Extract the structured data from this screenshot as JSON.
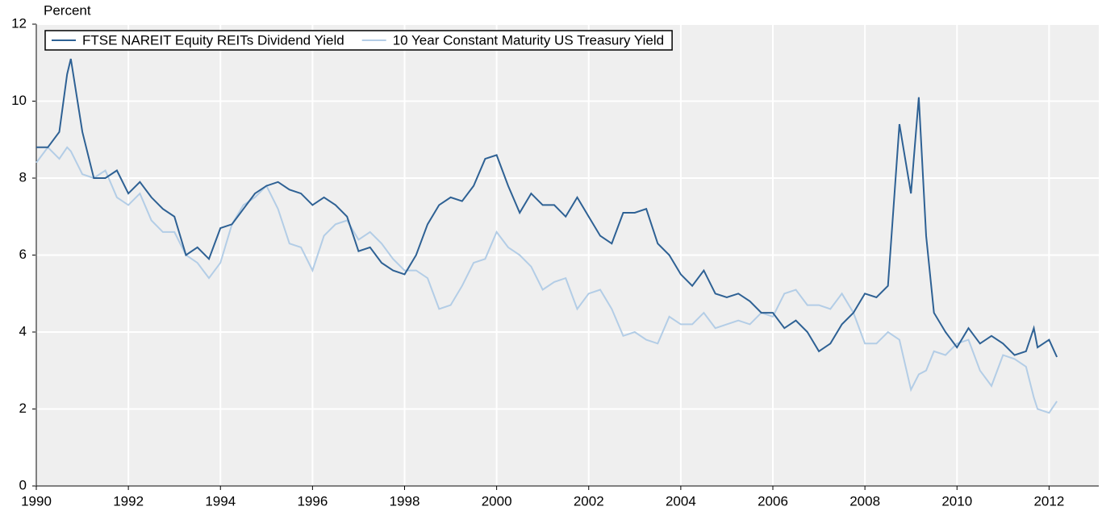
{
  "chart_data": {
    "type": "line",
    "y_label": "Percent",
    "x": [
      1990.0,
      1990.25,
      1990.5,
      1990.67,
      1990.75,
      1991.0,
      1991.25,
      1991.5,
      1991.75,
      1992.0,
      1992.25,
      1992.5,
      1992.75,
      1993.0,
      1993.25,
      1993.5,
      1993.75,
      1994.0,
      1994.25,
      1994.5,
      1994.75,
      1995.0,
      1995.25,
      1995.5,
      1995.75,
      1996.0,
      1996.25,
      1996.5,
      1996.75,
      1997.0,
      1997.25,
      1997.5,
      1997.75,
      1998.0,
      1998.25,
      1998.5,
      1998.75,
      1999.0,
      1999.25,
      1999.5,
      1999.75,
      2000.0,
      2000.25,
      2000.5,
      2000.75,
      2001.0,
      2001.25,
      2001.5,
      2001.75,
      2002.0,
      2002.25,
      2002.5,
      2002.75,
      2003.0,
      2003.25,
      2003.5,
      2003.75,
      2004.0,
      2004.25,
      2004.5,
      2004.75,
      2005.0,
      2005.25,
      2005.5,
      2005.75,
      2006.0,
      2006.25,
      2006.5,
      2006.75,
      2007.0,
      2007.25,
      2007.5,
      2007.75,
      2008.0,
      2008.25,
      2008.5,
      2008.75,
      2009.0,
      2009.17,
      2009.33,
      2009.5,
      2009.75,
      2010.0,
      2010.25,
      2010.5,
      2010.75,
      2011.0,
      2011.25,
      2011.5,
      2011.67,
      2011.75,
      2012.0,
      2012.17
    ],
    "series": [
      {
        "name": "FTSE NAREIT Equity REITs Dividend Yield",
        "color": "#2e6194",
        "values": [
          8.8,
          8.8,
          9.2,
          10.7,
          11.1,
          9.2,
          8.0,
          8.0,
          8.2,
          7.6,
          7.9,
          7.5,
          7.2,
          7.0,
          6.0,
          6.2,
          5.9,
          6.7,
          6.8,
          7.2,
          7.6,
          7.8,
          7.9,
          7.7,
          7.6,
          7.3,
          7.5,
          7.3,
          7.0,
          6.1,
          6.2,
          5.8,
          5.6,
          5.5,
          6.0,
          6.8,
          7.3,
          7.5,
          7.4,
          7.8,
          8.5,
          8.6,
          7.8,
          7.1,
          7.6,
          7.3,
          7.3,
          7.0,
          7.5,
          7.0,
          6.5,
          6.3,
          7.1,
          7.1,
          7.2,
          6.3,
          6.0,
          5.5,
          5.2,
          5.6,
          5.0,
          4.9,
          5.0,
          4.8,
          4.5,
          4.5,
          4.1,
          4.3,
          4.0,
          3.5,
          3.7,
          4.2,
          4.5,
          5.0,
          4.9,
          5.2,
          9.4,
          7.6,
          10.1,
          6.5,
          4.5,
          4.0,
          3.6,
          4.1,
          3.7,
          3.9,
          3.7,
          3.4,
          3.5,
          4.1,
          3.6,
          3.8,
          3.35
        ]
      },
      {
        "name": "10 Year Constant Maturity US Treasury Yield",
        "color": "#b3cde6",
        "values": [
          8.4,
          8.8,
          8.5,
          8.8,
          8.7,
          8.1,
          8.0,
          8.2,
          7.5,
          7.3,
          7.6,
          6.9,
          6.6,
          6.6,
          6.0,
          5.8,
          5.4,
          5.8,
          6.8,
          7.3,
          7.5,
          7.8,
          7.2,
          6.3,
          6.2,
          5.6,
          6.5,
          6.8,
          6.9,
          6.4,
          6.6,
          6.3,
          5.9,
          5.6,
          5.6,
          5.4,
          4.6,
          4.7,
          5.2,
          5.8,
          5.9,
          6.6,
          6.2,
          6.0,
          5.7,
          5.1,
          5.3,
          5.4,
          4.6,
          5.0,
          5.1,
          4.6,
          3.9,
          4.0,
          3.8,
          3.7,
          4.4,
          4.2,
          4.2,
          4.5,
          4.1,
          4.2,
          4.3,
          4.2,
          4.5,
          4.4,
          5.0,
          5.1,
          4.7,
          4.7,
          4.6,
          5.0,
          4.5,
          3.7,
          3.7,
          4.0,
          3.8,
          2.5,
          2.9,
          3.0,
          3.5,
          3.4,
          3.7,
          3.8,
          3.0,
          2.6,
          3.4,
          3.3,
          3.1,
          2.3,
          2.0,
          1.9,
          2.2
        ]
      }
    ],
    "xlim": [
      1990,
      2013.08
    ],
    "xticks": [
      1990,
      1992,
      1994,
      1996,
      1998,
      2000,
      2002,
      2004,
      2006,
      2008,
      2010,
      2012
    ],
    "ylim": [
      0,
      12
    ],
    "yticks": [
      0,
      2,
      4,
      6,
      8,
      10,
      12
    ],
    "grid": true,
    "legend": "top-left"
  }
}
